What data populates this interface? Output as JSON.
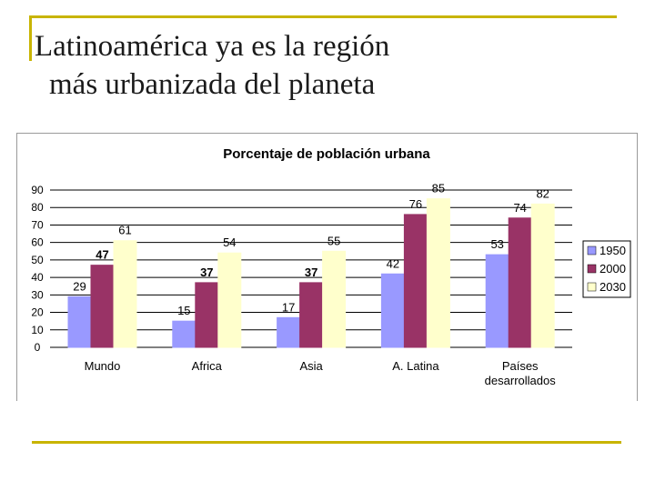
{
  "slide": {
    "title_line1": "Latinoamérica ya es la región",
    "title_line2": "más urbanizada del planeta"
  },
  "colors": {
    "accent_rule": "#c8b400",
    "s1950": "#9999ff",
    "s2000": "#993366",
    "s2030": "#ffffcc"
  },
  "chart_data": {
    "type": "bar",
    "title": "Porcentaje de población urbana",
    "categories": [
      "Mundo",
      "Africa",
      "Asia",
      "A. Latina",
      "Países desarrollados"
    ],
    "category_lines": [
      [
        "Mundo"
      ],
      [
        "Africa"
      ],
      [
        "Asia"
      ],
      [
        "A. Latina"
      ],
      [
        "Países",
        "desarrollados"
      ]
    ],
    "series": [
      {
        "name": "1950",
        "values": [
          29,
          15,
          17,
          42,
          53
        ]
      },
      {
        "name": "2000",
        "values": [
          47,
          37,
          37,
          76,
          74
        ]
      },
      {
        "name": "2030",
        "values": [
          61,
          54,
          55,
          85,
          82
        ]
      }
    ],
    "ylim": [
      0,
      90
    ],
    "yticks": [
      0,
      10,
      20,
      30,
      40,
      50,
      60,
      70,
      80,
      90
    ],
    "grid": true,
    "legend": "right"
  }
}
